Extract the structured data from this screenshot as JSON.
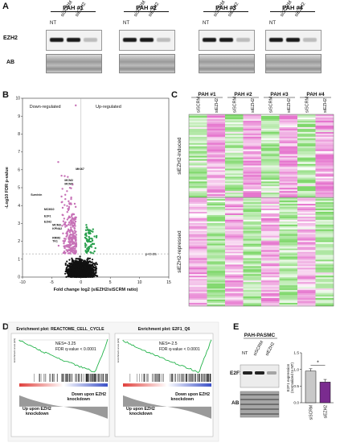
{
  "panels": {
    "A": "A",
    "B": "B",
    "C": "C",
    "D": "D",
    "E": "E"
  },
  "panel_a": {
    "groups": [
      {
        "title": "PAH #1",
        "lanes": [
          "NT",
          "siSCRM",
          "siEZH2"
        ]
      },
      {
        "title": "PAH #2",
        "lanes": [
          "NT",
          "siSCRM",
          "siEZH2"
        ]
      },
      {
        "title": "PAH #3",
        "lanes": [
          "NT",
          "siSCRM",
          "siEZH2"
        ]
      },
      {
        "title": "PAH #4",
        "lanes": [
          "NT",
          "siSCRM",
          "siEZH2"
        ]
      }
    ],
    "row_labels": [
      "EZH2",
      "AB"
    ]
  },
  "panel_b": {
    "chart_data": {
      "type": "scatter",
      "xlabel": "Fold change log2 (siEZH2/siSCRM ratio)",
      "ylabel": "-Log10 FDR p-value",
      "xlim": [
        -10,
        15
      ],
      "ylim": [
        0,
        10
      ],
      "xticks": [
        -10,
        -5,
        0,
        5,
        10,
        15
      ],
      "yticks": [
        0,
        1,
        2,
        3,
        4,
        5,
        6,
        7,
        8,
        9,
        10
      ],
      "threshold_label": "p<0.05",
      "region_labels": [
        "Down-regulated",
        "Up-regulated"
      ],
      "gene_labels": [
        "MKI67",
        "MCM2",
        "MCM7",
        "Survivin",
        "MCM10",
        "E2F1",
        "EZH2",
        "MCM3",
        "KPNA2",
        "RRM2",
        "TK1"
      ],
      "colors": {
        "down": "#c772b7",
        "up": "#2aa04e",
        "ns": "#111111"
      }
    }
  },
  "panel_c": {
    "groups": [
      "PAH #1",
      "PAH #2",
      "PAH #3",
      "PAH #4"
    ],
    "lanes": [
      "siSCRM",
      "siEZH2",
      "siSCRM",
      "siEZH2",
      "siSCRM",
      "siEZH2",
      "siSCRM",
      "siEZH2"
    ],
    "side_labels": [
      "siEZH2-induced",
      "siEZH2-repressed"
    ]
  },
  "panel_d": {
    "plots": [
      {
        "title": "Enrichment plot: REACTOME_CELL_CYCLE",
        "stats": [
          "NES=-3.25",
          "FDR q-value < 0.0001"
        ],
        "label_right": [
          "Down upon EZH2",
          "knockdown"
        ],
        "label_left": [
          "Up upon EZH2",
          "knockdown"
        ]
      },
      {
        "title": "Enrichment plot: E2F1_Q6",
        "stats": [
          "NES=-2.5",
          "FDR q-value < 0.0001"
        ],
        "label_right": [
          "Down upon EZH2",
          "knockdown"
        ],
        "label_left": [
          "Up upon EZH2",
          "knockdown"
        ]
      }
    ],
    "axis_small": "Enrichment score (ES)"
  },
  "panel_e": {
    "title": "PAH-PASMC",
    "lanes": [
      "NT",
      "siSCRM",
      "siEZH2"
    ],
    "row_labels": [
      "E2F1",
      "AB"
    ],
    "chart_data": {
      "type": "bar",
      "categories": [
        "siSCRM",
        "siEZH2"
      ],
      "values": [
        0.95,
        0.62
      ],
      "errors": [
        0.07,
        0.08
      ],
      "ylim": [
        0,
        1.5
      ],
      "yticks": [
        0,
        0.5,
        1.0,
        1.5
      ],
      "ylabel": "E2F1 expression (normalized to NT)",
      "significance": "*",
      "colors": [
        "#c8c8c8",
        "#7a2b8f"
      ]
    }
  }
}
